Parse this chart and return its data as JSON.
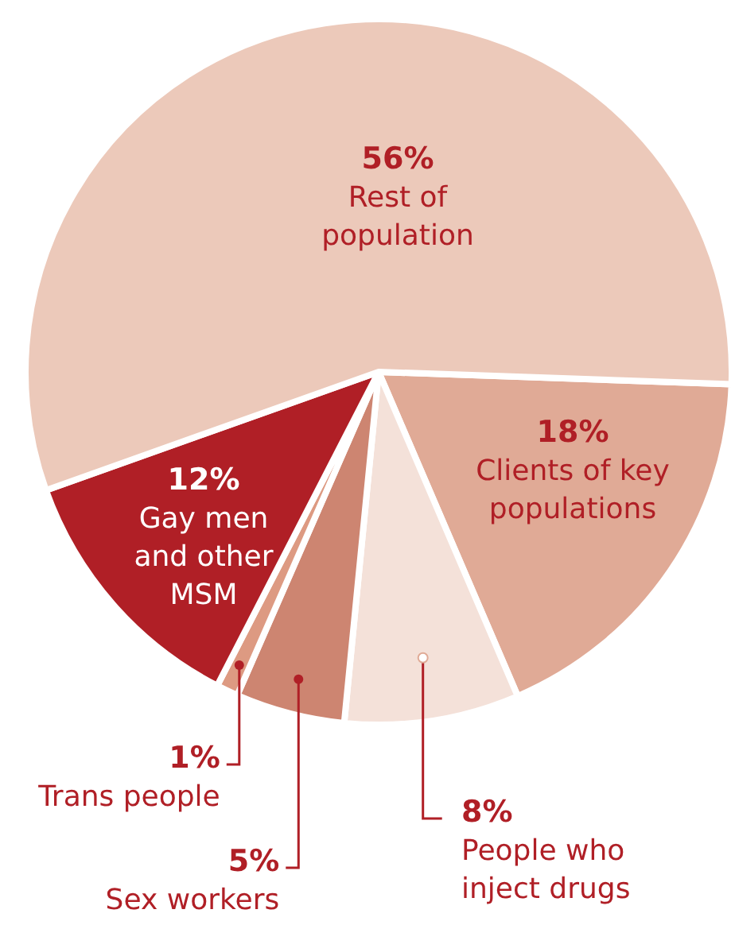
{
  "chart_data": {
    "type": "pie",
    "categories": [
      "Clients of key populations",
      "People who inject drugs",
      "Sex workers",
      "Trans people",
      "Gay men and other MSM",
      "Rest of population"
    ],
    "values": [
      18,
      8,
      5,
      1,
      12,
      56
    ],
    "value_labels": [
      "18%",
      "8%",
      "5%",
      "1%",
      "12%",
      "56%"
    ],
    "colors": [
      "#e0aa96",
      "#f4e1d9",
      "#cd8571",
      "#dd9a82",
      "#b01f26",
      "#ecc9ba"
    ]
  }
}
